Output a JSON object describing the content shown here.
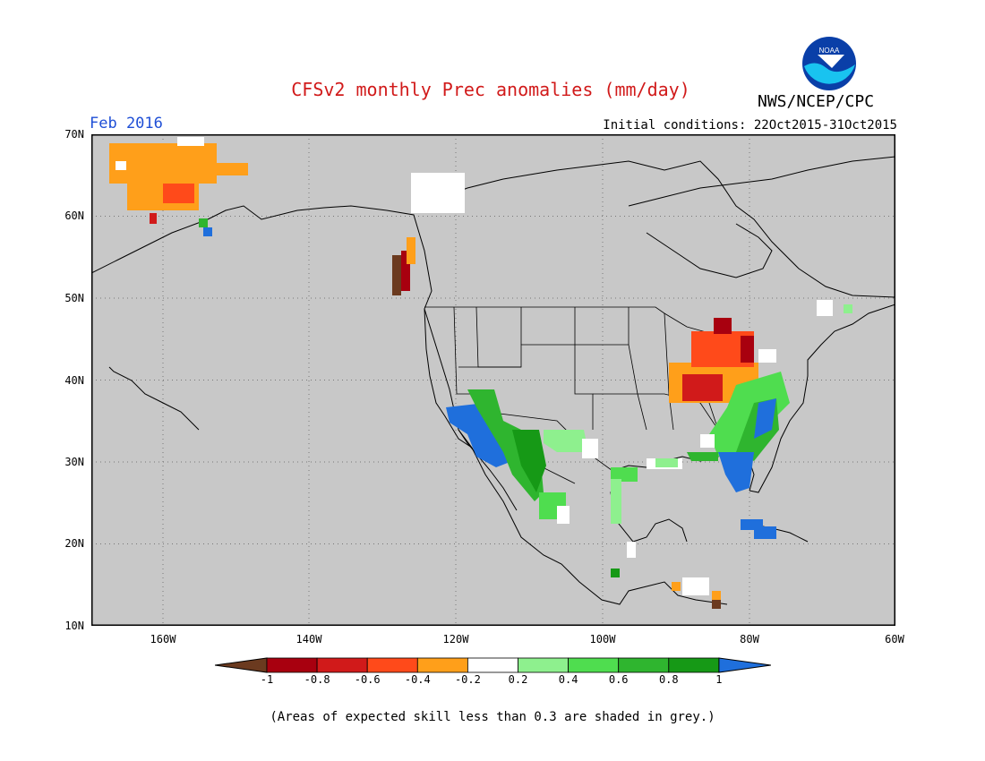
{
  "header": {
    "title": "CFSv2 monthly Prec anomalies (mm/day)",
    "month": "Feb 2016",
    "agency": "NWS/NCEP/CPC",
    "initial_conditions": "Initial conditions: 22Oct2015-31Oct2015",
    "logo_text": "NOAA"
  },
  "axes": {
    "lat_labels": [
      "70N",
      "60N",
      "50N",
      "40N",
      "30N",
      "20N",
      "10N"
    ],
    "lon_labels": [
      "160W",
      "140W",
      "120W",
      "100W",
      "80W",
      "60W"
    ]
  },
  "colorbar": {
    "labels": [
      "-1",
      "-0.8",
      "-0.6",
      "-0.4",
      "-0.2",
      "0.2",
      "0.4",
      "0.6",
      "0.8",
      "1"
    ],
    "colors": [
      "#6b3a1f",
      "#a8000f",
      "#d11a1a",
      "#ff4a1a",
      "#ff9f1a",
      "#ffffff",
      "#8ef08e",
      "#4fdd4f",
      "#2fb52f",
      "#169916",
      "#1f6fdc"
    ]
  },
  "footnote": "(Areas of expected skill less than 0.3 are shaded in grey.)",
  "colors": {
    "background_grey": "#c8c8c8",
    "title_red": "#d11a1a",
    "month_blue": "#1f4fd6"
  }
}
